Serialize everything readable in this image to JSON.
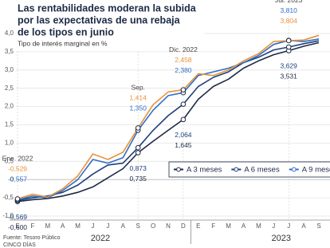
{
  "chart_data": {
    "type": "line",
    "title_lines": [
      "Las rentabilidades moderan la subida",
      "por las expectativas de una rebaja",
      "de los tipos en junio"
    ],
    "subtitle": "Tipo de interés marginal en %",
    "categories": [
      "E",
      "F",
      "M",
      "A",
      "M",
      "J",
      "J",
      "A",
      "S",
      "O",
      "N",
      "D",
      "E",
      "F",
      "M",
      "A",
      "M",
      "J",
      "J",
      "A",
      "S"
    ],
    "year_labels": [
      "2022",
      "2023"
    ],
    "date_labels": [
      "Ene. 2022",
      null,
      null,
      null,
      null,
      null,
      null,
      null,
      "Sep.",
      null,
      null,
      "Dic. 2022",
      null,
      null,
      null,
      null,
      null,
      null,
      "Jul. 2023",
      null,
      null
    ],
    "series": [
      {
        "name": "A 3 meses",
        "color": "#1b2a45",
        "values": [
          -0.6,
          -0.55,
          -0.52,
          -0.45,
          -0.35,
          -0.2,
          0.05,
          0.3,
          0.735,
          1.05,
          1.35,
          1.645,
          2.2,
          2.55,
          2.75,
          3.05,
          3.25,
          3.42,
          3.531,
          3.65,
          3.75
        ],
        "value_labels": [
          "-0,600",
          null,
          null,
          null,
          null,
          null,
          null,
          null,
          "0,735",
          null,
          null,
          "1,645",
          null,
          null,
          null,
          null,
          null,
          null,
          "3,531",
          null,
          null
        ]
      },
      {
        "name": "A 6 meses",
        "color": "#1f3f7a",
        "values": [
          -0.569,
          -0.5,
          -0.45,
          -0.35,
          -0.15,
          0.15,
          0.4,
          0.45,
          0.873,
          1.35,
          1.75,
          2.064,
          2.55,
          2.8,
          2.95,
          3.2,
          3.35,
          3.55,
          3.629,
          3.72,
          3.8
        ],
        "value_labels": [
          "-0,569",
          null,
          null,
          null,
          null,
          null,
          null,
          null,
          "0,873",
          null,
          null,
          "2,064",
          null,
          null,
          null,
          null,
          null,
          null,
          "3,629",
          null,
          null
        ]
      },
      {
        "name": "A 9 meses",
        "color": "#2f6fc4",
        "values": [
          -0.557,
          -0.45,
          -0.5,
          -0.3,
          0.0,
          0.55,
          0.45,
          0.6,
          1.35,
          1.9,
          2.3,
          2.38,
          2.85,
          2.95,
          3.05,
          3.2,
          3.4,
          3.7,
          3.81,
          3.78,
          3.85
        ],
        "value_labels": [
          "-0,557",
          null,
          null,
          null,
          null,
          null,
          null,
          null,
          "1,350",
          null,
          null,
          "2,380",
          null,
          null,
          null,
          null,
          null,
          null,
          "3,810",
          null,
          null
        ]
      },
      {
        "color": "#e8923a",
        "values": [
          -0.529,
          -0.4,
          -0.48,
          -0.25,
          0.1,
          0.7,
          0.55,
          0.75,
          1.414,
          2.05,
          2.4,
          2.458,
          2.9,
          2.85,
          3.0,
          3.25,
          3.45,
          3.78,
          3.804,
          3.82,
          3.95
        ],
        "value_labels": [
          "-0,529",
          null,
          null,
          null,
          null,
          null,
          null,
          null,
          "1,414",
          null,
          null,
          "2,458",
          null,
          null,
          null,
          null,
          null,
          null,
          "3,804",
          null,
          null
        ]
      }
    ],
    "ylim": [
      -1,
      4
    ],
    "yticks": [
      {
        "value": 4,
        "label": "4,0"
      },
      {
        "value": 3.5,
        "label": "3,5"
      },
      {
        "value": 3,
        "label": "3,0"
      },
      {
        "value": 2.5,
        "label": "2,5"
      },
      {
        "value": 2,
        "label": "2,0"
      },
      {
        "value": 1.5,
        "label": "1,5"
      },
      {
        "value": 1,
        "label": "1,0"
      },
      {
        "value": 0.5,
        "label": "0,5"
      },
      0,
      {
        "value": -0.5,
        "label": "-0,5"
      },
      {
        "value": -1,
        "label": "-1,0"
      }
    ],
    "grid": true,
    "legend": "right",
    "source_lines": [
      "Fuente: Tesoro Público",
      "CINCO DÍAS"
    ]
  }
}
